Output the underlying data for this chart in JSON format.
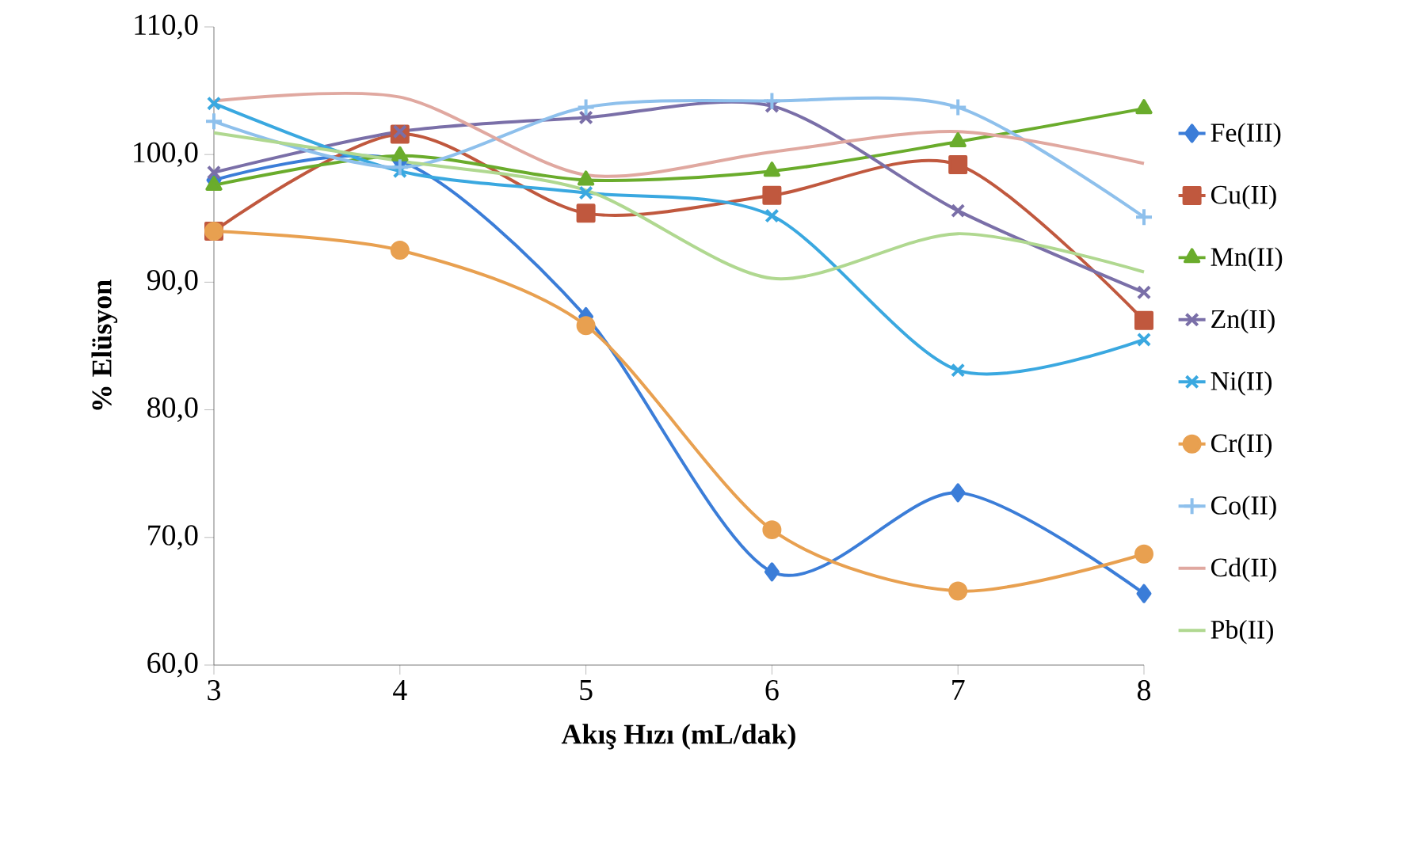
{
  "chart_data": {
    "type": "line",
    "xlabel": "Akış Hızı (mL/dak)",
    "ylabel": "% Elüsyon",
    "x": [
      3,
      4,
      5,
      6,
      7,
      8
    ],
    "xlim": [
      3,
      8
    ],
    "xticks": [
      3,
      4,
      5,
      6,
      7,
      8
    ],
    "ylim": [
      60,
      110
    ],
    "yticks": [
      {
        "value": 60,
        "label": "60,0"
      },
      {
        "value": 70,
        "label": "70,0"
      },
      {
        "value": 80,
        "label": "80,0"
      },
      {
        "value": 90,
        "label": "90,0"
      },
      {
        "value": 100,
        "label": "100,0"
      },
      {
        "value": 110,
        "label": "110,0"
      }
    ],
    "legend": "right",
    "series": [
      {
        "name": "Fe(III)",
        "color": "#3b7dd8",
        "marker": "diamond",
        "values": [
          98.0,
          99.5,
          87.3,
          67.3,
          73.5,
          65.6
        ]
      },
      {
        "name": "Cu(II)",
        "color": "#c0583e",
        "marker": "square",
        "values": [
          94.0,
          101.6,
          95.4,
          96.8,
          99.2,
          87.0
        ]
      },
      {
        "name": "Mn(II)",
        "color": "#6aac2c",
        "marker": "triangle",
        "values": [
          97.6,
          99.9,
          98.0,
          98.7,
          101.0,
          103.6
        ]
      },
      {
        "name": "Zn(II)",
        "color": "#7a6fa8",
        "marker": "cross",
        "values": [
          98.6,
          101.8,
          102.9,
          103.8,
          95.6,
          89.2
        ]
      },
      {
        "name": "Ni(II)",
        "color": "#3aa8e0",
        "marker": "cross",
        "values": [
          104.0,
          98.7,
          97.0,
          95.2,
          83.1,
          85.5
        ]
      },
      {
        "name": "Cr(II)",
        "color": "#e8a050",
        "marker": "circle",
        "values": [
          94.0,
          92.5,
          86.6,
          70.6,
          65.8,
          68.7
        ]
      },
      {
        "name": "Co(II)",
        "color": "#8ec0ec",
        "marker": "plus",
        "values": [
          102.6,
          99.0,
          103.7,
          104.2,
          103.7,
          95.1
        ]
      },
      {
        "name": "Cd(II)",
        "color": "#e0a8a0",
        "marker": "none",
        "values": [
          104.2,
          104.5,
          98.4,
          100.2,
          101.8,
          99.3
        ]
      },
      {
        "name": "Pb(II)",
        "color": "#b0d890",
        "marker": "none",
        "values": [
          101.7,
          99.5,
          97.2,
          90.3,
          93.8,
          90.8
        ]
      }
    ]
  }
}
